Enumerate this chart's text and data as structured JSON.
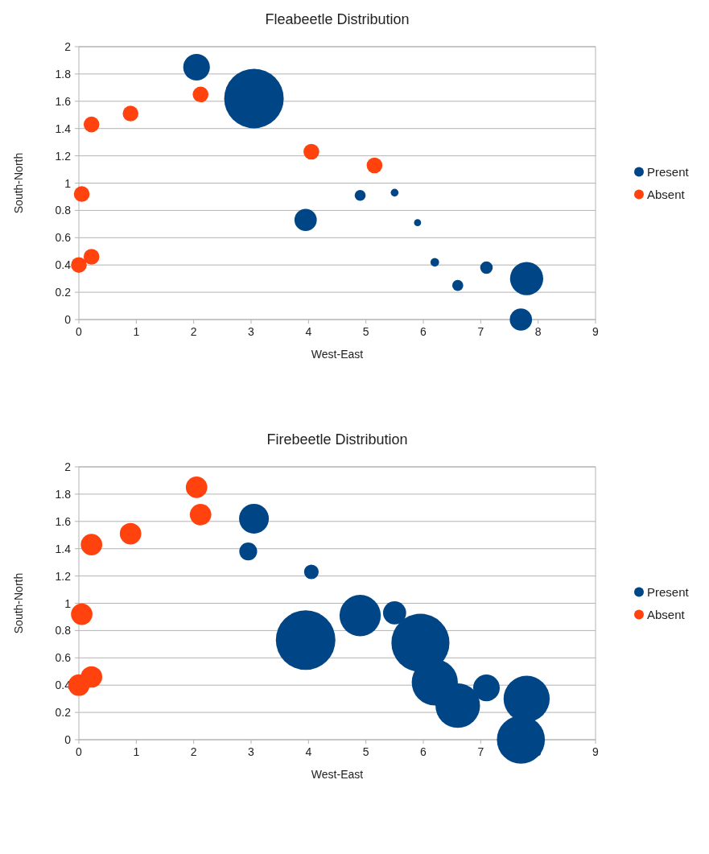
{
  "chart_data": [
    {
      "type": "bubble",
      "title": "Fleabeetle Distribution",
      "xlabel": "West-East",
      "ylabel": "South-North",
      "xlim": [
        0,
        9
      ],
      "xticks": [
        0,
        1,
        2,
        3,
        4,
        5,
        6,
        7,
        8,
        9
      ],
      "ylim": [
        0,
        2
      ],
      "yticks": [
        0,
        0.2,
        0.4,
        0.6,
        0.8,
        1,
        1.2,
        1.4,
        1.6,
        1.8,
        2
      ],
      "grid": "y",
      "legend": "right",
      "series": [
        {
          "name": "Present",
          "color": "#004586",
          "x": [
            2.05,
            3.05,
            3.95,
            4.9,
            5.5,
            5.9,
            6.2,
            6.6,
            7.1,
            7.8,
            7.7
          ],
          "values": [
            1.85,
            1.62,
            0.73,
            0.91,
            0.93,
            0.71,
            0.42,
            0.25,
            0.38,
            0.3,
            0
          ],
          "sizes": [
            0.2,
            1,
            0.14,
            0.034,
            0.017,
            0.014,
            0.021,
            0.034,
            0.044,
            0.31,
            0.14
          ]
        },
        {
          "name": "Absent",
          "color": "#ff420e",
          "x": [
            0,
            0.22,
            0.05,
            0.22,
            0.9,
            2.12,
            4.05,
            5.15
          ],
          "values": [
            0.4,
            0.46,
            0.92,
            1.43,
            1.51,
            1.65,
            1.23,
            1.13
          ],
          "sizes": [
            0.07,
            0.07,
            0.07,
            0.07,
            0.07,
            0.07,
            0.07,
            0.07
          ]
        }
      ]
    },
    {
      "type": "bubble",
      "title": "Firebeetle Distribution",
      "xlabel": "West-East",
      "ylabel": "South-North",
      "xlim": [
        0,
        9
      ],
      "xticks": [
        0,
        1,
        2,
        3,
        4,
        5,
        6,
        7,
        8,
        9
      ],
      "ylim": [
        0,
        2
      ],
      "yticks": [
        0,
        0.2,
        0.4,
        0.6,
        0.8,
        1,
        1.2,
        1.4,
        1.6,
        1.8,
        2
      ],
      "grid": "y",
      "legend": "right",
      "series": [
        {
          "name": "Present",
          "color": "#004586",
          "x": [
            3.05,
            2.95,
            4.05,
            3.95,
            4.9,
            5.5,
            5.95,
            6.2,
            6.6,
            7.1,
            7.8,
            7.7
          ],
          "values": [
            1.62,
            1.38,
            1.23,
            0.73,
            0.91,
            0.93,
            0.71,
            0.42,
            0.25,
            0.38,
            0.3,
            0
          ],
          "sizes": [
            0.25,
            0.09,
            0.06,
            1,
            0.48,
            0.15,
            0.95,
            0.6,
            0.56,
            0.2,
            0.6,
            0.65
          ]
        },
        {
          "name": "Absent",
          "color": "#ff420e",
          "x": [
            0,
            0.22,
            0.05,
            0.22,
            0.9,
            2.05,
            2.12
          ],
          "values": [
            0.4,
            0.46,
            0.92,
            1.43,
            1.51,
            1.85,
            1.65
          ],
          "sizes": [
            0.13,
            0.13,
            0.13,
            0.13,
            0.13,
            0.13,
            0.13
          ]
        }
      ]
    }
  ]
}
